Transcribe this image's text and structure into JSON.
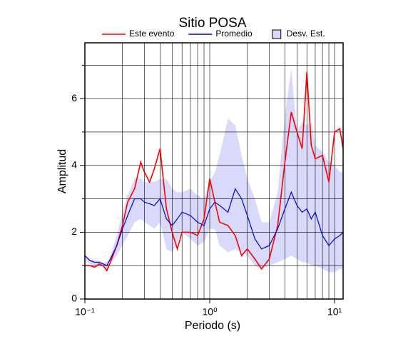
{
  "chart_data": {
    "type": "line",
    "title": "Sitio POSA",
    "xlabel": "Periodo (s)",
    "ylabel": "Amplitud",
    "xscale": "log",
    "grid": true,
    "x": [
      0.1,
      0.11,
      0.12,
      0.13,
      0.14,
      0.15,
      0.16,
      0.18,
      0.2,
      0.22,
      0.25,
      0.28,
      0.3,
      0.33,
      0.36,
      0.4,
      0.45,
      0.5,
      0.55,
      0.6,
      0.7,
      0.8,
      0.9,
      1.0,
      1.1,
      1.2,
      1.4,
      1.6,
      1.8,
      2.0,
      2.3,
      2.6,
      3.0,
      3.5,
      4.0,
      4.5,
      5.0,
      5.5,
      6.0,
      6.5,
      7,
      8,
      9,
      10,
      11,
      11.7
    ],
    "band": {
      "name": "Desv. Est.",
      "color": "#d9d9fb",
      "upper": [
        1.3,
        1.2,
        1.15,
        1.15,
        1.1,
        1.1,
        1.3,
        1.9,
        2.6,
        3.1,
        3.6,
        3.6,
        3.5,
        3.5,
        3.5,
        3.6,
        3.6,
        3.3,
        3.2,
        3.2,
        3.3,
        3.1,
        3.0,
        3.5,
        3.8,
        4.3,
        5.4,
        5.2,
        4.3,
        3.6,
        3.0,
        2.3,
        2.3,
        3.2,
        5.5,
        6.9,
        5.0,
        5.3,
        5.2,
        5.3,
        4.6,
        4.4,
        4.1,
        4.0,
        3.8,
        3.8
      ],
      "lower": [
        1.2,
        1.05,
        1.0,
        1.0,
        0.95,
        0.9,
        1.05,
        1.3,
        1.6,
        1.9,
        2.3,
        2.4,
        2.3,
        2.2,
        2.1,
        2.3,
        1.5,
        1.4,
        1.7,
        2.0,
        1.8,
        1.6,
        1.7,
        2.1,
        2.1,
        1.6,
        1.4,
        1.5,
        1.4,
        1.3,
        1.0,
        0.9,
        1.0,
        1.1,
        1.2,
        1.3,
        1.2,
        1.1,
        1.1,
        1.0,
        1.0,
        0.9,
        0.8,
        0.8,
        0.9,
        0.9
      ]
    },
    "series": [
      {
        "name": "Este evento",
        "color": "#ff0000",
        "values": [
          1.0,
          1.0,
          0.95,
          1.05,
          1.0,
          0.85,
          1.1,
          1.6,
          2.2,
          2.9,
          3.3,
          4.1,
          3.8,
          3.5,
          3.9,
          4.5,
          2.7,
          2.0,
          1.5,
          2.0,
          2.0,
          1.9,
          2.4,
          3.6,
          2.9,
          2.3,
          2.2,
          1.9,
          1.3,
          1.5,
          1.2,
          0.9,
          1.2,
          2.2,
          4.1,
          5.6,
          5.0,
          4.5,
          6.8,
          4.6,
          4.2,
          4.3,
          3.5,
          5.0,
          5.1,
          4.5
        ]
      },
      {
        "name": "Promedio",
        "color": "#0000dd",
        "values": [
          1.3,
          1.15,
          1.1,
          1.1,
          1.05,
          1.0,
          1.2,
          1.6,
          2.1,
          2.5,
          3.0,
          3.0,
          2.9,
          2.85,
          2.8,
          3.0,
          2.4,
          2.2,
          2.4,
          2.6,
          2.5,
          2.3,
          2.2,
          2.7,
          2.9,
          2.8,
          2.6,
          3.3,
          3.0,
          2.5,
          1.8,
          1.5,
          1.6,
          2.1,
          2.7,
          3.2,
          2.8,
          2.6,
          2.7,
          2.4,
          2.6,
          1.9,
          1.6,
          1.8,
          1.9,
          2.0
        ]
      }
    ],
    "xlim": [
      0.1,
      11.7
    ],
    "ylim": [
      0,
      7.67
    ],
    "xticks": [
      {
        "value": 0.1,
        "label": "10⁻¹"
      },
      {
        "value": 1,
        "label": "10⁰"
      },
      {
        "value": 10,
        "label": "10¹"
      }
    ],
    "xminor": [
      0.2,
      0.3,
      0.4,
      0.5,
      0.6,
      0.7,
      0.8,
      0.9,
      2,
      3,
      4,
      5,
      6,
      7,
      8,
      9
    ],
    "yticks": [
      0,
      2,
      4,
      6
    ],
    "yminor": [
      1,
      3,
      5,
      7
    ]
  }
}
